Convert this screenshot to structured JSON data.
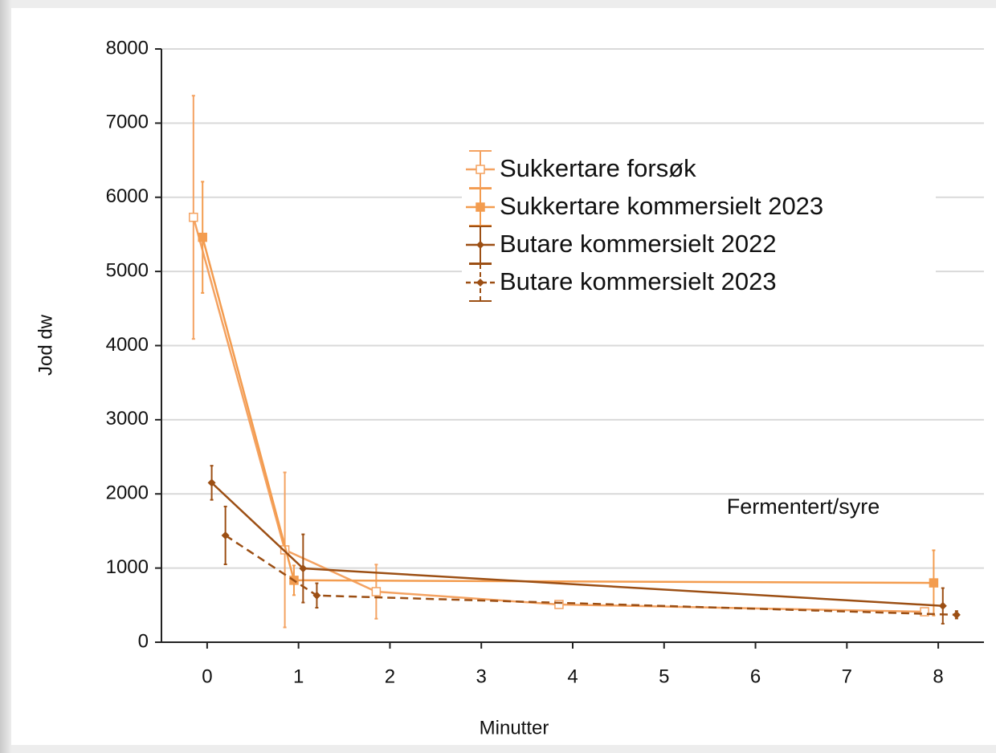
{
  "chart_data": {
    "type": "line",
    "xlabel": "Minutter",
    "ylabel": "Jod dw",
    "annotation": "Fermentert/syre",
    "xlim": [
      -0.5,
      8.5
    ],
    "xticks": [
      0,
      1,
      2,
      3,
      4,
      5,
      6,
      7,
      8
    ],
    "ylim": [
      0,
      8000
    ],
    "yticks": [
      0,
      1000,
      2000,
      3000,
      4000,
      5000,
      6000,
      7000,
      8000
    ],
    "grid": true,
    "legend": "upper right",
    "series": [
      {
        "name": "Sukkertare forsøk",
        "color": "#f4a261",
        "marker": "open-square",
        "dash": false,
        "x": [
          0,
          1,
          2,
          4,
          8
        ],
        "values": [
          5730,
          1245,
          682,
          509,
          411
        ],
        "errors": [
          1640,
          1045,
          365,
          30,
          30
        ]
      },
      {
        "name": "Sukkertare kommersielt 2023",
        "color": "#f39c4f",
        "marker": "square",
        "dash": false,
        "x": [
          0,
          1,
          8
        ],
        "values": [
          5460,
          835,
          800
        ],
        "errors": [
          750,
          200,
          440
        ]
      },
      {
        "name": "Butare kommersielt 2022",
        "color": "#9c4f14",
        "marker": "diamond",
        "dash": false,
        "x": [
          0,
          1,
          8
        ],
        "values": [
          2150,
          995,
          490
        ],
        "errors": [
          230,
          460,
          240
        ]
      },
      {
        "name": "Butare kommersielt 2023",
        "color": "#9c4f14",
        "marker": "diamond",
        "dash": true,
        "x": [
          0,
          1,
          8
        ],
        "values": [
          1440,
          630,
          370
        ],
        "errors": [
          390,
          165,
          50
        ]
      }
    ]
  }
}
